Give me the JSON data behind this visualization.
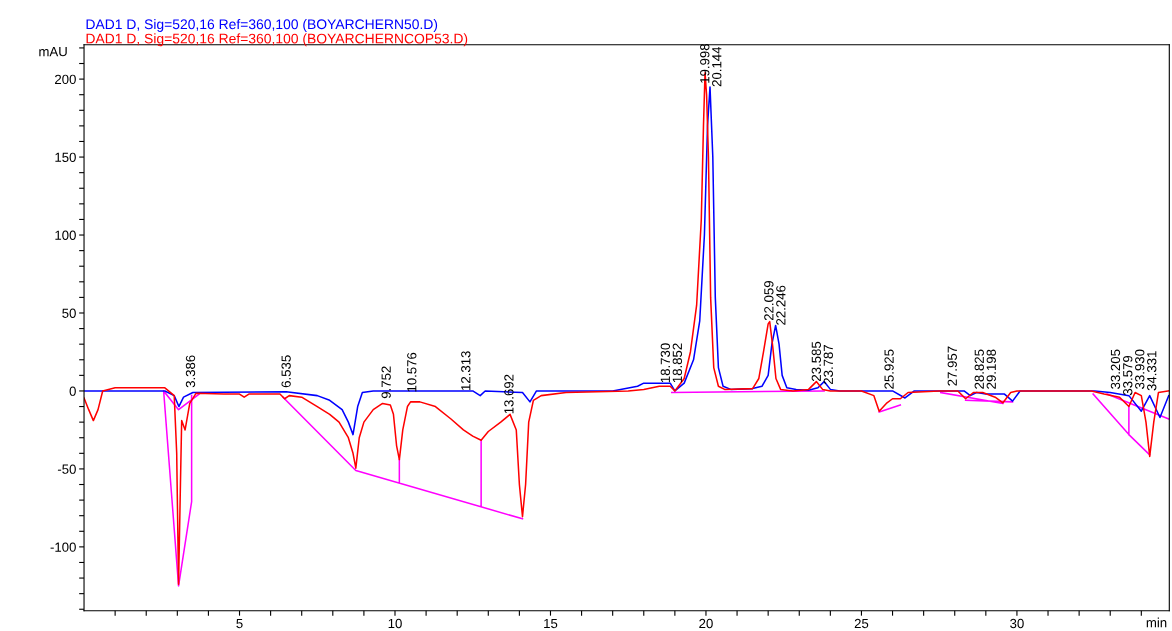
{
  "chart_data": {
    "type": "line",
    "xlabel": "min",
    "ylabel": "mAU",
    "legend": "top left",
    "xlim": [
      0,
      34.9
    ],
    "ylim": [
      -141,
      222
    ],
    "xticks": [
      {
        "value": 1,
        "label": null
      },
      {
        "value": 2,
        "label": null
      },
      {
        "value": 3,
        "label": null
      },
      {
        "value": 4,
        "label": null
      },
      5,
      {
        "value": 6,
        "label": null
      },
      {
        "value": 7,
        "label": null
      },
      {
        "value": 8,
        "label": null
      },
      {
        "value": 9,
        "label": null
      },
      10,
      {
        "value": 11,
        "label": null
      },
      {
        "value": 12,
        "label": null
      },
      {
        "value": 13,
        "label": null
      },
      {
        "value": 14,
        "label": null
      },
      15,
      {
        "value": 16,
        "label": null
      },
      {
        "value": 17,
        "label": null
      },
      {
        "value": 18,
        "label": null
      },
      {
        "value": 19,
        "label": null
      },
      20,
      {
        "value": 21,
        "label": null
      },
      {
        "value": 22,
        "label": null
      },
      {
        "value": 23,
        "label": null
      },
      {
        "value": 24,
        "label": null
      },
      25,
      {
        "value": 26,
        "label": null
      },
      {
        "value": 27,
        "label": null
      },
      {
        "value": 28,
        "label": null
      },
      {
        "value": 29,
        "label": null
      },
      30,
      {
        "value": 31,
        "label": null
      },
      {
        "value": 32,
        "label": null
      },
      {
        "value": 33,
        "label": null
      },
      {
        "value": 34,
        "label": null
      }
    ],
    "yticks": [
      {
        "value": -140,
        "label": null
      },
      {
        "value": -130,
        "label": null
      },
      {
        "value": -120,
        "label": null
      },
      {
        "value": -110,
        "label": null
      },
      -100,
      {
        "value": -90,
        "label": null
      },
      {
        "value": -80,
        "label": null
      },
      {
        "value": -70,
        "label": null
      },
      {
        "value": -60,
        "label": null
      },
      -50,
      {
        "value": -40,
        "label": null
      },
      {
        "value": -30,
        "label": null
      },
      {
        "value": -20,
        "label": null
      },
      {
        "value": -10,
        "label": null
      },
      0,
      {
        "value": 10,
        "label": null
      },
      {
        "value": 20,
        "label": null
      },
      {
        "value": 30,
        "label": null
      },
      {
        "value": 40,
        "label": null
      },
      50,
      {
        "value": 60,
        "label": null
      },
      {
        "value": 70,
        "label": null
      },
      {
        "value": 80,
        "label": null
      },
      {
        "value": 90,
        "label": null
      },
      100,
      {
        "value": 110,
        "label": null
      },
      {
        "value": 120,
        "label": null
      },
      {
        "value": 130,
        "label": null
      },
      {
        "value": 140,
        "label": null
      },
      150,
      {
        "value": 160,
        "label": null
      },
      {
        "value": 170,
        "label": null
      },
      {
        "value": 180,
        "label": null
      },
      {
        "value": 190,
        "label": null
      },
      200,
      {
        "value": 210,
        "label": null
      },
      {
        "value": 220,
        "label": null
      }
    ],
    "series": [
      {
        "name": "DAD1 D, Sig=520,16 Ref=360,100 (BOYARCHERN50.D)",
        "color": "#0000ff",
        "x": [
          0,
          2.6,
          2.9,
          3.05,
          3.2,
          3.5,
          6.5,
          7.5,
          7.9,
          8.3,
          8.5,
          8.65,
          8.8,
          8.95,
          9.3,
          12.5,
          12.74,
          12.9,
          14.1,
          14.34,
          14.55,
          17.0,
          17.8,
          18.0,
          18.85,
          19.0,
          19.3,
          19.6,
          19.8,
          19.95,
          20.05,
          20.13,
          20.22,
          20.3,
          20.4,
          20.55,
          20.8,
          21.5,
          21.8,
          22.0,
          22.12,
          22.24,
          22.35,
          22.45,
          22.6,
          22.9,
          23.3,
          23.6,
          23.8,
          24.0,
          24.3,
          26.0,
          26.4,
          26.7,
          28.3,
          28.5,
          28.7,
          29.0,
          29.6,
          29.86,
          30.1,
          32.5,
          33.0,
          33.6,
          34.0,
          34.27,
          34.6,
          34.88
        ],
        "values": [
          0,
          0,
          -3,
          -10,
          -4,
          -1,
          -0.5,
          -3,
          -6,
          -12,
          -20,
          -28,
          -10,
          -1,
          0,
          0,
          -3,
          0,
          -1,
          -7,
          0,
          0,
          3,
          5,
          5,
          0,
          5,
          20,
          45,
          100,
          170,
          195,
          150,
          60,
          15,
          3,
          1,
          1.5,
          3,
          10,
          30,
          42,
          30,
          10,
          2,
          1,
          0.5,
          2,
          6,
          1,
          0,
          0,
          -4.5,
          0,
          0,
          -3,
          -1,
          -2,
          -2,
          -6.5,
          0,
          0,
          -1,
          -3,
          -13,
          -3,
          -17,
          -3
        ]
      },
      {
        "name": "DAD1 D, Sig=520,16 Ref=360,100 (BOYARCHERNCOP53.D)",
        "color": "#ff0000",
        "x": [
          0,
          0.15,
          0.3,
          0.45,
          0.6,
          1.0,
          2.6,
          2.9,
          2.98,
          3.04,
          3.1,
          3.14,
          3.25,
          3.4,
          3.6,
          4.5,
          5.0,
          5.15,
          5.3,
          6.3,
          6.45,
          6.6,
          7.0,
          7.5,
          7.9,
          8.2,
          8.5,
          8.65,
          8.74,
          8.85,
          9.0,
          9.3,
          9.6,
          9.85,
          9.95,
          10.05,
          10.14,
          10.25,
          10.4,
          10.5,
          10.8,
          11.3,
          11.8,
          12.2,
          12.5,
          12.77,
          13.0,
          13.4,
          13.7,
          13.9,
          14.0,
          14.1,
          14.2,
          14.3,
          14.45,
          14.7,
          15.5,
          17.5,
          18.0,
          18.5,
          18.85,
          19.0,
          19.3,
          19.5,
          19.7,
          19.85,
          19.92,
          19.97,
          20.02,
          20.08,
          20.15,
          20.25,
          20.4,
          20.6,
          21.5,
          21.7,
          21.85,
          22.0,
          22.05,
          22.15,
          22.25,
          22.4,
          22.8,
          23.3,
          23.55,
          23.75,
          24.0,
          25.0,
          25.4,
          25.57,
          25.8,
          26.0,
          26.25,
          26.5,
          27.5,
          28.1,
          28.35,
          28.6,
          28.9,
          29.3,
          29.55,
          29.8,
          30.0,
          32.4,
          32.8,
          33.3,
          33.6,
          33.8,
          34.0,
          34.15,
          34.27,
          34.4,
          34.55,
          34.88
        ],
        "values": [
          -4.5,
          -12,
          -19,
          -12,
          0,
          2,
          2,
          -3,
          -40,
          -124,
          -60,
          -19,
          -25,
          -8,
          -1.5,
          -2,
          -2,
          -4,
          -2,
          -2,
          -5,
          -3,
          -4,
          -10,
          -15,
          -20,
          -30,
          -40,
          -49.5,
          -30,
          -20,
          -12,
          -8,
          -9,
          -15,
          -35,
          -44,
          -25,
          -10,
          -7,
          -7,
          -10,
          -18,
          -25,
          -29,
          -31.6,
          -26,
          -20,
          -15,
          -25,
          -60,
          -80.6,
          -60,
          -20,
          -6,
          -3,
          -1,
          0,
          1,
          3,
          3,
          0,
          8,
          25,
          55,
          110,
          170,
          204,
          190,
          150,
          60,
          15,
          3,
          1,
          1.5,
          8,
          25,
          43,
          44.5,
          28,
          8,
          1,
          0,
          1,
          6,
          1,
          0,
          0,
          -3,
          -13,
          -8,
          -5,
          -5,
          -1,
          0,
          0,
          -5,
          -1,
          -1,
          -4,
          -7.6,
          -1,
          0,
          0,
          -2,
          -4,
          -10,
          -1,
          -3,
          -20,
          -42,
          -20,
          -1,
          0
        ]
      },
      {
        "color": "#ff00ff",
        "x": [
          2.56,
          3.04,
          3.46,
          3.46,
          null,
          2.6,
          3.04,
          3.7,
          null,
          6.4,
          8.74,
          14.1,
          null,
          10.14,
          10.14,
          null,
          12.77,
          12.77,
          null,
          18.9,
          23.8,
          null,
          25.57,
          26.25,
          null,
          27.55,
          29.55,
          null,
          28.35,
          29.86,
          null,
          32.45,
          33.6,
          34.27,
          null,
          33.6,
          33.6,
          null,
          32.9,
          34.88
        ],
        "values": [
          0,
          -125,
          -71,
          -3,
          null,
          -1,
          -12,
          -2,
          null,
          -4,
          -51,
          -82,
          null,
          -44,
          -59,
          null,
          -32,
          -73.6,
          null,
          -1,
          0,
          null,
          -13.5,
          -9,
          null,
          -1,
          -8,
          null,
          -6,
          -7,
          null,
          -2,
          -28,
          -41,
          null,
          -10,
          -28,
          null,
          -2,
          -18
        ]
      }
    ],
    "annotations": [
      {
        "text": "3.386",
        "x": 3.46,
        "y": 2
      },
      {
        "text": "6.535",
        "x": 6.535,
        "y": 2
      },
      {
        "text": "9.752",
        "x": 9.752,
        "y": -5
      },
      {
        "text": "10.576",
        "x": 10.576,
        "y": -1
      },
      {
        "text": "12.313",
        "x": 12.313,
        "y": 0
      },
      {
        "text": "13.692",
        "x": 13.7,
        "y": -15
      },
      {
        "text": "18.730",
        "x": 18.73,
        "y": 5
      },
      {
        "text": "18.852",
        "x": 18.852,
        "y": 5
      },
      {
        "text": "19.998",
        "x": 19.998,
        "y": 197
      },
      {
        "text": "20.144",
        "x": 20.144,
        "y": 195
      },
      {
        "text": "22.059",
        "x": 22.059,
        "y": 45
      },
      {
        "text": "22.246",
        "x": 22.246,
        "y": 42
      },
      {
        "text": "23.585",
        "x": 23.585,
        "y": 6
      },
      {
        "text": "23.787",
        "x": 23.787,
        "y": 4
      },
      {
        "text": "25.925",
        "x": 25.925,
        "y": 1
      },
      {
        "text": "27.957",
        "x": 27.957,
        "y": 3
      },
      {
        "text": "28.825",
        "x": 28.825,
        "y": 1
      },
      {
        "text": "29.198",
        "x": 29.198,
        "y": 1
      },
      {
        "text": "33.205",
        "x": 33.205,
        "y": 1
      },
      {
        "text": "33.579",
        "x": 33.6,
        "y": -3
      },
      {
        "text": "33.930",
        "x": 33.93,
        "y": 1
      },
      {
        "text": "34.331",
        "x": 34.331,
        "y": 0
      }
    ]
  }
}
